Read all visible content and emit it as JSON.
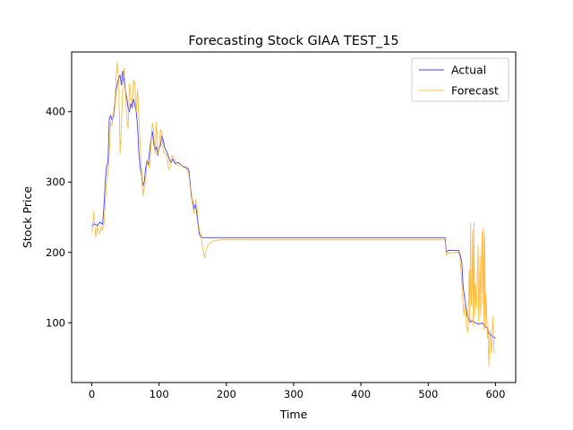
{
  "chart_data": {
    "type": "line",
    "title": "Forecasting Stock GIAA TEST_15",
    "xlabel": "Time",
    "ylabel": "Stock Price",
    "xlim": [
      -30,
      630
    ],
    "ylim": [
      15,
      485
    ],
    "xticks": [
      0,
      100,
      200,
      300,
      400,
      500,
      600
    ],
    "yticks": [
      100,
      200,
      300,
      400
    ],
    "grid": false,
    "legend": "top-right",
    "series": [
      {
        "name": "Actual",
        "color": "#0000ff",
        "opacity": 0.75,
        "points": [
          [
            0,
            237
          ],
          [
            4,
            241
          ],
          [
            8,
            238
          ],
          [
            12,
            243
          ],
          [
            16,
            240
          ],
          [
            18,
            265
          ],
          [
            20,
            300
          ],
          [
            22,
            322
          ],
          [
            24,
            328
          ],
          [
            26,
            390
          ],
          [
            28,
            395
          ],
          [
            30,
            388
          ],
          [
            32,
            392
          ],
          [
            34,
            410
          ],
          [
            36,
            430
          ],
          [
            38,
            440
          ],
          [
            40,
            448
          ],
          [
            42,
            452
          ],
          [
            44,
            438
          ],
          [
            46,
            458
          ],
          [
            48,
            445
          ],
          [
            50,
            430
          ],
          [
            52,
            420
          ],
          [
            54,
            405
          ],
          [
            56,
            400
          ],
          [
            58,
            412
          ],
          [
            60,
            405
          ],
          [
            62,
            418
          ],
          [
            64,
            410
          ],
          [
            66,
            400
          ],
          [
            68,
            380
          ],
          [
            70,
            340
          ],
          [
            72,
            320
          ],
          [
            74,
            310
          ],
          [
            76,
            295
          ],
          [
            78,
            300
          ],
          [
            80,
            320
          ],
          [
            82,
            330
          ],
          [
            84,
            325
          ],
          [
            86,
            345
          ],
          [
            88,
            360
          ],
          [
            90,
            372
          ],
          [
            92,
            355
          ],
          [
            94,
            345
          ],
          [
            96,
            350
          ],
          [
            98,
            338
          ],
          [
            100,
            348
          ],
          [
            102,
            352
          ],
          [
            104,
            366
          ],
          [
            106,
            360
          ],
          [
            108,
            350
          ],
          [
            110,
            345
          ],
          [
            112,
            342
          ],
          [
            114,
            336
          ],
          [
            116,
            330
          ],
          [
            118,
            328
          ],
          [
            120,
            333
          ],
          [
            124,
            326
          ],
          [
            128,
            328
          ],
          [
            132,
            325
          ],
          [
            136,
            322
          ],
          [
            140,
            321
          ],
          [
            144,
            318
          ],
          [
            146,
            300
          ],
          [
            148,
            280
          ],
          [
            150,
            272
          ],
          [
            152,
            262
          ],
          [
            154,
            268
          ],
          [
            156,
            255
          ],
          [
            158,
            240
          ],
          [
            160,
            225
          ],
          [
            162,
            222
          ],
          [
            164,
            221
          ],
          [
            200,
            221
          ],
          [
            300,
            221
          ],
          [
            400,
            221
          ],
          [
            500,
            221
          ],
          [
            525,
            221
          ],
          [
            527,
            200
          ],
          [
            530,
            203
          ],
          [
            540,
            203
          ],
          [
            545,
            203
          ],
          [
            548,
            195
          ],
          [
            550,
            185
          ],
          [
            552,
            150
          ],
          [
            555,
            130
          ],
          [
            558,
            110
          ],
          [
            560,
            107
          ],
          [
            562,
            100
          ],
          [
            565,
            103
          ],
          [
            568,
            101
          ],
          [
            572,
            99
          ],
          [
            576,
            98
          ],
          [
            580,
            100
          ],
          [
            584,
            95
          ],
          [
            588,
            92
          ],
          [
            590,
            85
          ],
          [
            594,
            82
          ],
          [
            596,
            80
          ],
          [
            600,
            78
          ]
        ]
      },
      {
        "name": "Forecast",
        "color": "#ffa500",
        "opacity": 0.75,
        "points": [
          [
            0,
            229
          ],
          [
            2,
            245
          ],
          [
            3,
            258
          ],
          [
            4,
            240
          ],
          [
            6,
            222
          ],
          [
            8,
            236
          ],
          [
            10,
            226
          ],
          [
            12,
            228
          ],
          [
            14,
            237
          ],
          [
            16,
            232
          ],
          [
            18,
            242
          ],
          [
            20,
            268
          ],
          [
            22,
            298
          ],
          [
            24,
            315
          ],
          [
            26,
            340
          ],
          [
            28,
            385
          ],
          [
            30,
            380
          ],
          [
            32,
            398
          ],
          [
            34,
            403
          ],
          [
            36,
            448
          ],
          [
            38,
            471
          ],
          [
            40,
            441
          ],
          [
            42,
            340
          ],
          [
            44,
            380
          ],
          [
            46,
            440
          ],
          [
            48,
            462
          ],
          [
            50,
            430
          ],
          [
            52,
            390
          ],
          [
            54,
            376
          ],
          [
            56,
            440
          ],
          [
            58,
            421
          ],
          [
            60,
            408
          ],
          [
            62,
            445
          ],
          [
            64,
            440
          ],
          [
            66,
            400
          ],
          [
            68,
            432
          ],
          [
            70,
            390
          ],
          [
            72,
            350
          ],
          [
            74,
            315
          ],
          [
            76,
            280
          ],
          [
            78,
            295
          ],
          [
            80,
            300
          ],
          [
            82,
            328
          ],
          [
            84,
            332
          ],
          [
            86,
            320
          ],
          [
            88,
            355
          ],
          [
            90,
            384
          ],
          [
            92,
            373
          ],
          [
            94,
            340
          ],
          [
            96,
            385
          ],
          [
            98,
            340
          ],
          [
            100,
            347
          ],
          [
            102,
            375
          ],
          [
            104,
            370
          ],
          [
            106,
            345
          ],
          [
            108,
            341
          ],
          [
            110,
            340
          ],
          [
            112,
            337
          ],
          [
            114,
            318
          ],
          [
            116,
            320
          ],
          [
            118,
            335
          ],
          [
            120,
            338
          ],
          [
            124,
            330
          ],
          [
            128,
            323
          ],
          [
            132,
            326
          ],
          [
            136,
            321
          ],
          [
            140,
            320
          ],
          [
            144,
            312
          ],
          [
            146,
            296
          ],
          [
            148,
            285
          ],
          [
            150,
            265
          ],
          [
            152,
            255
          ],
          [
            154,
            275
          ],
          [
            156,
            268
          ],
          [
            158,
            245
          ],
          [
            160,
            230
          ],
          [
            162,
            228
          ],
          [
            164,
            210
          ],
          [
            166,
            200
          ],
          [
            168,
            192
          ],
          [
            170,
            205
          ],
          [
            174,
            212
          ],
          [
            180,
            216
          ],
          [
            190,
            218
          ],
          [
            200,
            218
          ],
          [
            300,
            218
          ],
          [
            400,
            218
          ],
          [
            500,
            218
          ],
          [
            525,
            218
          ],
          [
            527,
            196
          ],
          [
            530,
            199
          ],
          [
            540,
            200
          ],
          [
            545,
            200
          ],
          [
            547,
            195
          ],
          [
            549,
            170
          ],
          [
            551,
            140
          ],
          [
            553,
            110
          ],
          [
            555,
            130
          ],
          [
            557,
            95
          ],
          [
            559,
            86
          ],
          [
            561,
            175
          ],
          [
            562,
            100
          ],
          [
            563,
            242
          ],
          [
            564,
            125
          ],
          [
            565,
            150
          ],
          [
            566,
            232
          ],
          [
            567,
            95
          ],
          [
            568,
            242
          ],
          [
            569,
            110
          ],
          [
            570,
            155
          ],
          [
            572,
            120
          ],
          [
            574,
            210
          ],
          [
            575,
            100
          ],
          [
            577,
            195
          ],
          [
            578,
            110
          ],
          [
            580,
            230
          ],
          [
            581,
            125
          ],
          [
            582,
            235
          ],
          [
            583,
            90
          ],
          [
            584,
            225
          ],
          [
            585,
            95
          ],
          [
            586,
            140
          ],
          [
            588,
            78
          ],
          [
            589,
            95
          ],
          [
            590,
            38
          ],
          [
            592,
            90
          ],
          [
            594,
            56
          ],
          [
            596,
            108
          ],
          [
            598,
            58
          ],
          [
            600,
            58
          ]
        ]
      }
    ]
  }
}
